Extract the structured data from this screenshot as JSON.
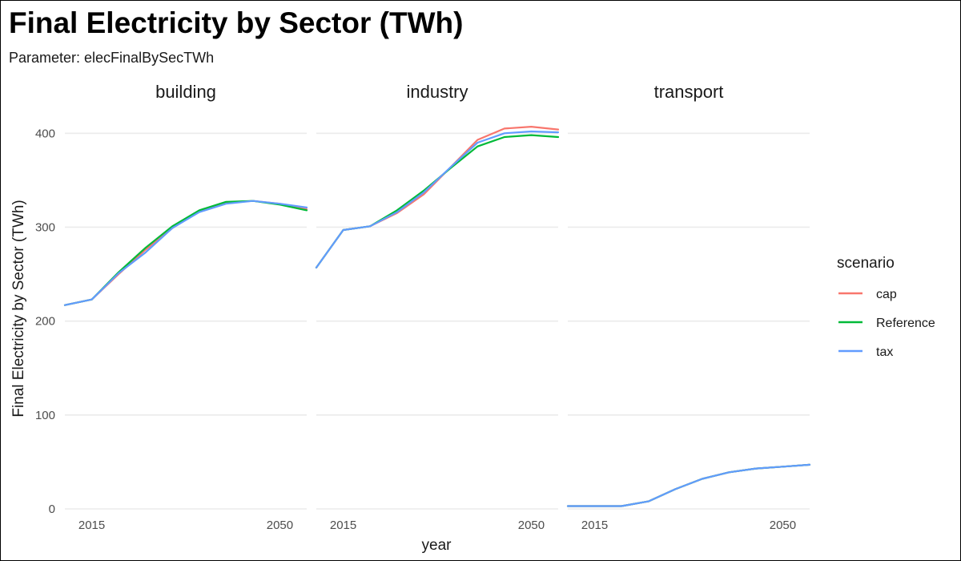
{
  "chart_data": {
    "type": "line",
    "title": "Final Electricity by Sector (TWh)",
    "subtitle": "Parameter: elecFinalBySecTWh",
    "xlabel": "year",
    "ylabel": "Final Electricity by Sector (TWh)",
    "xlim": [
      2010,
      2055
    ],
    "ylim": [
      0,
      425
    ],
    "x_ticks": [
      2015,
      2050
    ],
    "y_ticks": [
      0,
      100,
      200,
      300,
      400
    ],
    "grid": true,
    "legend": {
      "title": "scenario",
      "placement": "right",
      "entries": [
        {
          "name": "cap",
          "color": "#F8766D"
        },
        {
          "name": "Reference",
          "color": "#00BA38"
        },
        {
          "name": "tax",
          "color": "#619CFF"
        }
      ]
    },
    "facets": [
      {
        "name": "building",
        "x": [
          2010,
          2015,
          2020,
          2025,
          2030,
          2035,
          2040,
          2045,
          2050,
          2055
        ],
        "series": [
          {
            "name": "cap",
            "values": [
              217,
              223,
              250,
              276,
              299,
              317,
              326,
              328,
              325,
              319
            ]
          },
          {
            "name": "Reference",
            "values": [
              217,
              223,
              252,
              278,
              301,
              318,
              327,
              328,
              324,
              318
            ]
          },
          {
            "name": "tax",
            "values": [
              217,
              223,
              251,
              273,
              299,
              316,
              325,
              328,
              325,
              321
            ]
          }
        ]
      },
      {
        "name": "industry",
        "x": [
          2010,
          2015,
          2020,
          2025,
          2030,
          2035,
          2040,
          2045,
          2050,
          2055
        ],
        "series": [
          {
            "name": "cap",
            "values": [
              257,
              297,
              301,
              315,
              335,
              364,
              393,
              405,
              407,
              404
            ]
          },
          {
            "name": "Reference",
            "values": [
              257,
              297,
              301,
              318,
              339,
              363,
              386,
              396,
              398,
              396
            ]
          },
          {
            "name": "tax",
            "values": [
              257,
              297,
              301,
              316,
              337,
              364,
              390,
              400,
              402,
              401
            ]
          }
        ]
      },
      {
        "name": "transport",
        "x": [
          2010,
          2015,
          2020,
          2025,
          2030,
          2035,
          2040,
          2045,
          2050,
          2055
        ],
        "series": [
          {
            "name": "cap",
            "values": [
              3,
              3,
              3,
              8,
              21,
              32,
              39,
              43,
              45,
              47
            ]
          },
          {
            "name": "Reference",
            "values": [
              3,
              3,
              3,
              8,
              21,
              32,
              39,
              43,
              45,
              47
            ]
          },
          {
            "name": "tax",
            "values": [
              3,
              3,
              3,
              8,
              21,
              32,
              39,
              43,
              45,
              47
            ]
          }
        ]
      }
    ]
  }
}
